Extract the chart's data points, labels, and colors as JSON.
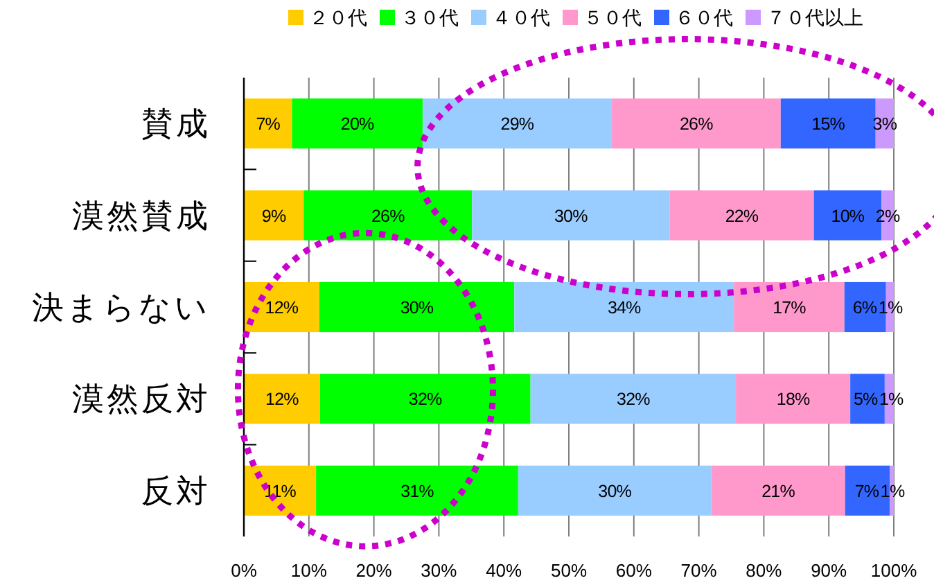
{
  "chart_data": {
    "type": "bar",
    "orientation": "horizontal",
    "stacked": true,
    "categories": [
      "賛成",
      "漠然賛成",
      "決まらない",
      "漠然反対",
      "反対"
    ],
    "series": [
      {
        "name": "２０代",
        "color": "#ffcc00",
        "values": [
          7.4,
          9.2,
          11.6,
          11.7,
          11.1
        ],
        "value_labels": [
          "7%",
          "9%",
          "12%",
          "12%",
          "11%"
        ]
      },
      {
        "name": "３０代",
        "color": "#00ff00",
        "values": [
          20.1,
          25.9,
          30.0,
          32.4,
          31.1
        ],
        "value_labels": [
          "20%",
          "26%",
          "30%",
          "32%",
          "31%"
        ]
      },
      {
        "name": "４０代",
        "color": "#99ccff",
        "values": [
          29.1,
          30.4,
          33.8,
          31.6,
          29.7
        ],
        "value_labels": [
          "29%",
          "30%",
          "34%",
          "32%",
          "30%"
        ]
      },
      {
        "name": "５０代",
        "color": "#ff99cc",
        "values": [
          26.0,
          22.2,
          17.0,
          17.6,
          20.6
        ],
        "value_labels": [
          "26%",
          "22%",
          "17%",
          "18%",
          "21%"
        ]
      },
      {
        "name": "６０代",
        "color": "#3366ff",
        "values": [
          14.6,
          10.4,
          6.4,
          5.3,
          6.9
        ],
        "value_labels": [
          "15%",
          "10%",
          "6%",
          "5%",
          "7%"
        ]
      },
      {
        "name": "７０代以上",
        "color": "#cc99ff",
        "values": [
          2.8,
          1.9,
          1.2,
          1.4,
          0.6
        ],
        "value_labels": [
          "3%",
          "2%",
          "1%",
          "1%",
          "1%"
        ]
      }
    ],
    "xlim": [
      0,
      100
    ],
    "xticks": [
      {
        "value": 0,
        "label": "0%"
      },
      {
        "value": 10,
        "label": "10%"
      },
      {
        "value": 20,
        "label": "20%"
      },
      {
        "value": 30,
        "label": "30%"
      },
      {
        "value": 40,
        "label": "40%"
      },
      {
        "value": 50,
        "label": "50%"
      },
      {
        "value": 60,
        "label": "60%"
      },
      {
        "value": 70,
        "label": "70%"
      },
      {
        "value": 80,
        "label": "80%"
      },
      {
        "value": 90,
        "label": "90%"
      },
      {
        "value": 100,
        "label": "100%"
      }
    ],
    "grid": "x",
    "legend": "top"
  }
}
